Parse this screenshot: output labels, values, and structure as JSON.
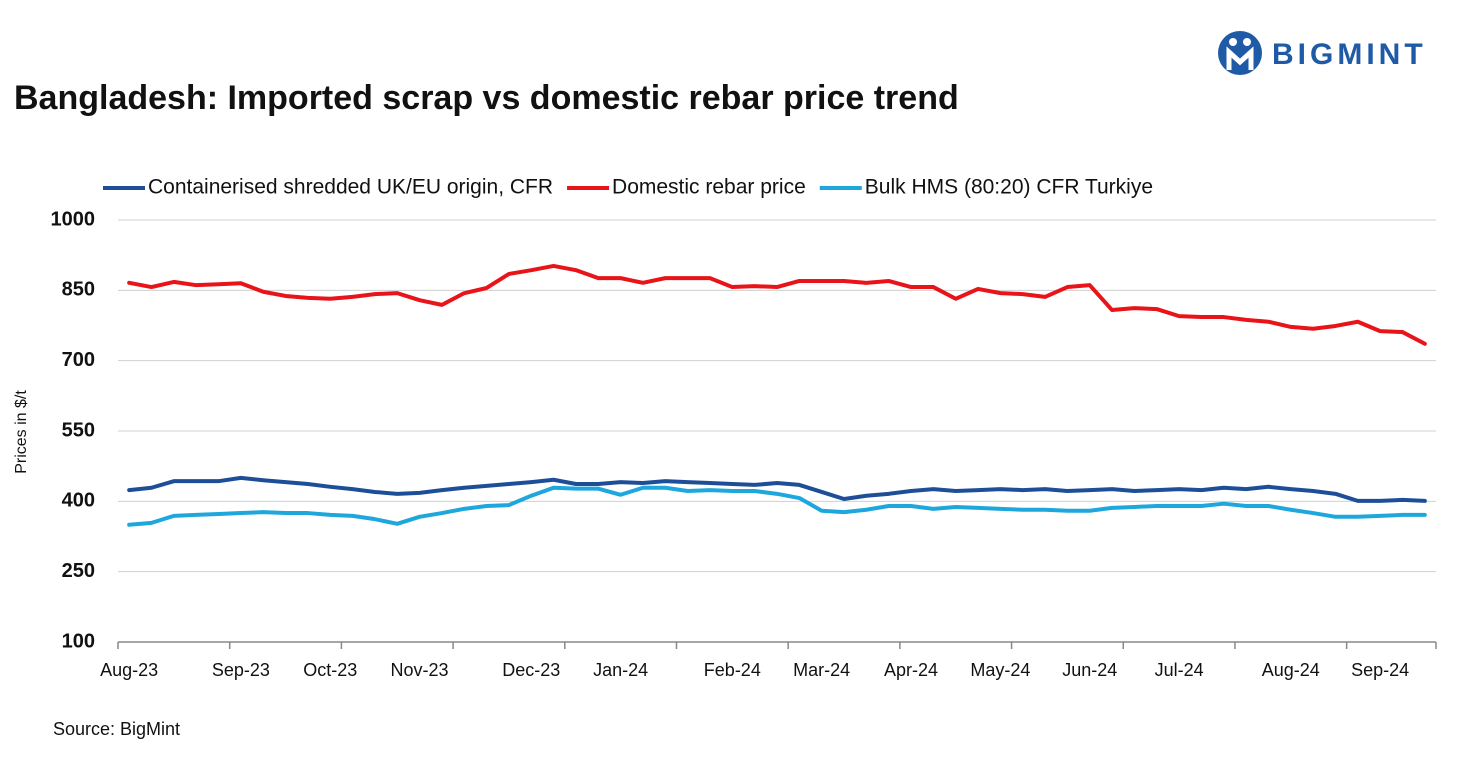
{
  "chart_data": {
    "type": "line",
    "title": "Bangladesh: Imported scrap vs domestic rebar price trend",
    "logo": "BIGMINT",
    "y_label": "Prices in $/t",
    "source": "Source: BigMint",
    "categories": [
      "Aug-23",
      null,
      null,
      null,
      null,
      "Sep-23",
      null,
      null,
      null,
      "Oct-23",
      null,
      null,
      null,
      "Nov-23",
      null,
      null,
      null,
      null,
      "Dec-23",
      null,
      null,
      null,
      "Jan-24",
      null,
      null,
      null,
      null,
      "Feb-24",
      null,
      null,
      null,
      "Mar-24",
      null,
      null,
      null,
      "Apr-24",
      null,
      null,
      null,
      "May-24",
      null,
      null,
      null,
      "Jun-24",
      null,
      null,
      null,
      "Jul-24",
      null,
      null,
      null,
      null,
      "Aug-24",
      null,
      null,
      null,
      "Sep-24",
      null,
      null
    ],
    "series": [
      {
        "name": "Containerised shredded UK/EU origin, CFR",
        "color": "#1f4e99",
        "values": [
          424,
          429,
          443,
          443,
          443,
          450,
          445,
          441,
          437,
          431,
          426,
          420,
          416,
          418,
          424,
          429,
          433,
          437,
          441,
          446,
          437,
          437,
          441,
          439,
          443,
          441,
          439,
          437,
          435,
          439,
          435,
          420,
          405,
          412,
          416,
          422,
          426,
          422,
          424,
          426,
          424,
          426,
          422,
          424,
          426,
          422,
          424,
          426,
          424,
          429,
          426,
          431,
          426,
          422,
          416,
          401,
          401,
          403,
          401
        ]
      },
      {
        "name": "Domestic rebar price",
        "color": "#e8141a",
        "values": [
          866,
          857,
          868,
          861,
          863,
          865,
          847,
          838,
          834,
          832,
          836,
          842,
          844,
          829,
          819,
          844,
          855,
          885,
          893,
          902,
          893,
          876,
          876,
          866,
          876,
          876,
          876,
          857,
          859,
          857,
          870,
          870,
          870,
          866,
          870,
          857,
          857,
          832,
          853,
          844,
          842,
          836,
          857,
          861,
          808,
          812,
          810,
          795,
          793,
          793,
          787,
          783,
          772,
          768,
          774,
          783,
          763,
          761,
          736
        ]
      },
      {
        "name": "Bulk HMS (80:20) CFR Turkiye",
        "color": "#1ea7dd",
        "values": [
          350,
          354,
          369,
          371,
          373,
          375,
          377,
          375,
          375,
          371,
          369,
          362,
          352,
          367,
          375,
          384,
          390,
          392,
          412,
          429,
          427,
          427,
          414,
          429,
          429,
          422,
          424,
          422,
          422,
          416,
          407,
          380,
          377,
          382,
          390,
          390,
          384,
          388,
          386,
          384,
          382,
          382,
          380,
          380,
          386,
          388,
          390,
          390,
          390,
          395,
          390,
          390,
          382,
          375,
          367,
          367,
          369,
          371,
          371
        ]
      }
    ],
    "ylim": [
      100,
      1000
    ],
    "yticks": [
      100,
      250,
      400,
      550,
      700,
      850,
      1000
    ],
    "grid": true,
    "legend": "top"
  }
}
